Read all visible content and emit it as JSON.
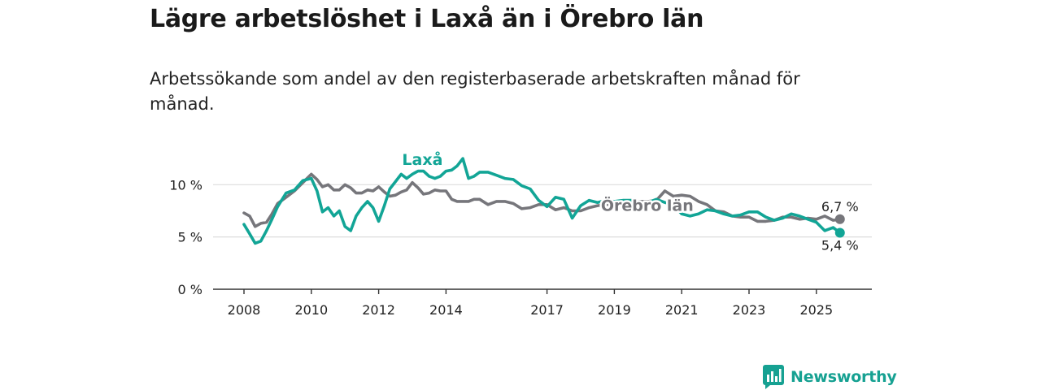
{
  "title": "Lägre arbetslöshet i Laxå än i Örebro län",
  "subtitle": "Arbetssökande som andel av den registerbaserade arbetskraften månad för månad.",
  "brand": {
    "name": "Newsworthy",
    "icon": "newsworthy-logo-icon"
  },
  "colors": {
    "laxa": "#12a596",
    "orebro": "#76767b",
    "grid": "#dddddd",
    "axis": "#333333"
  },
  "chart_data": {
    "type": "line",
    "title": "Lägre arbetslöshet i Laxå än i Örebro län",
    "xlabel": "",
    "ylabel": "",
    "ylim": [
      0,
      12.9
    ],
    "xlim": [
      2007.7,
      2026.5
    ],
    "grid": true,
    "y_ticks": [
      {
        "value": 0,
        "label": "0 %"
      },
      {
        "value": 5,
        "label": "5 %"
      },
      {
        "value": 10,
        "label": "10 %"
      }
    ],
    "x_ticks": [
      {
        "value": 2008,
        "label": "2008"
      },
      {
        "value": 2010,
        "label": "2010"
      },
      {
        "value": 2012,
        "label": "2012"
      },
      {
        "value": 2014,
        "label": "2014"
      },
      {
        "value": 2017,
        "label": "2017"
      },
      {
        "value": 2019,
        "label": "2019"
      },
      {
        "value": 2021,
        "label": "2021"
      },
      {
        "value": 2023,
        "label": "2023"
      },
      {
        "value": 2025,
        "label": "2025"
      }
    ],
    "series": [
      {
        "name": "Örebro län",
        "label": "Örebro län",
        "color": "#76767b",
        "end_label": "6,7 %",
        "x": [
          2008.0,
          2008.17,
          2008.33,
          2008.5,
          2008.67,
          2008.83,
          2009.0,
          2009.25,
          2009.5,
          2009.75,
          2010.0,
          2010.17,
          2010.33,
          2010.5,
          2010.67,
          2010.83,
          2011.0,
          2011.17,
          2011.33,
          2011.5,
          2011.67,
          2011.83,
          2012.0,
          2012.17,
          2012.33,
          2012.5,
          2012.67,
          2012.83,
          2013.0,
          2013.17,
          2013.33,
          2013.5,
          2013.67,
          2013.83,
          2014.0,
          2014.17,
          2014.33,
          2014.5,
          2014.67,
          2014.83,
          2015.0,
          2015.25,
          2015.5,
          2015.75,
          2016.0,
          2016.25,
          2016.5,
          2016.75,
          2017.0,
          2017.25,
          2017.5,
          2017.75,
          2018.0,
          2018.25,
          2018.5,
          2018.75,
          2019.0,
          2019.25,
          2019.5,
          2019.75,
          2020.0,
          2020.25,
          2020.5,
          2020.75,
          2021.0,
          2021.25,
          2021.5,
          2021.75,
          2022.0,
          2022.25,
          2022.5,
          2022.75,
          2023.0,
          2023.25,
          2023.5,
          2023.75,
          2024.0,
          2024.25,
          2024.5,
          2024.75,
          2025.0,
          2025.25,
          2025.5,
          2025.7
        ],
        "values": [
          7.3,
          7.0,
          6.0,
          6.3,
          6.4,
          7.2,
          8.2,
          8.8,
          9.4,
          10.2,
          11.0,
          10.5,
          9.8,
          10.0,
          9.5,
          9.5,
          10.0,
          9.7,
          9.2,
          9.2,
          9.5,
          9.4,
          9.8,
          9.3,
          8.9,
          9.0,
          9.3,
          9.5,
          10.2,
          9.7,
          9.1,
          9.2,
          9.5,
          9.4,
          9.4,
          8.6,
          8.4,
          8.4,
          8.4,
          8.6,
          8.6,
          8.1,
          8.4,
          8.4,
          8.2,
          7.7,
          7.8,
          8.1,
          8.1,
          7.6,
          7.8,
          7.5,
          7.5,
          7.8,
          8.0,
          8.1,
          8.2,
          8.3,
          8.3,
          8.4,
          8.4,
          8.5,
          9.4,
          8.9,
          9.0,
          8.9,
          8.4,
          8.1,
          7.5,
          7.4,
          7.0,
          6.9,
          6.9,
          6.5,
          6.5,
          6.6,
          6.9,
          6.9,
          6.7,
          6.8,
          6.7,
          7.0,
          6.6,
          6.7
        ],
        "label_at": {
          "x": 2018.6,
          "y": 7.5
        }
      },
      {
        "name": "Laxå",
        "label": "Laxå",
        "color": "#12a596",
        "end_label": "5,4 %",
        "x": [
          2008.0,
          2008.17,
          2008.33,
          2008.5,
          2008.67,
          2008.83,
          2009.0,
          2009.25,
          2009.5,
          2009.75,
          2010.0,
          2010.17,
          2010.33,
          2010.5,
          2010.67,
          2010.83,
          2011.0,
          2011.17,
          2011.33,
          2011.5,
          2011.67,
          2011.83,
          2012.0,
          2012.17,
          2012.33,
          2012.5,
          2012.67,
          2012.83,
          2013.0,
          2013.17,
          2013.33,
          2013.5,
          2013.67,
          2013.83,
          2014.0,
          2014.17,
          2014.33,
          2014.5,
          2014.67,
          2014.83,
          2015.0,
          2015.25,
          2015.5,
          2015.75,
          2016.0,
          2016.25,
          2016.5,
          2016.75,
          2017.0,
          2017.25,
          2017.5,
          2017.75,
          2018.0,
          2018.25,
          2018.5,
          2018.75,
          2019.0,
          2019.25,
          2019.5,
          2019.75,
          2020.0,
          2020.25,
          2020.5,
          2020.75,
          2021.0,
          2021.25,
          2021.5,
          2021.75,
          2022.0,
          2022.25,
          2022.5,
          2022.75,
          2023.0,
          2023.25,
          2023.5,
          2023.75,
          2024.0,
          2024.25,
          2024.5,
          2024.75,
          2025.0,
          2025.25,
          2025.5,
          2025.7
        ],
        "values": [
          6.2,
          5.3,
          4.4,
          4.6,
          5.6,
          6.7,
          7.9,
          9.2,
          9.5,
          10.4,
          10.6,
          9.4,
          7.4,
          7.8,
          7.0,
          7.5,
          6.0,
          5.6,
          7.0,
          7.8,
          8.4,
          7.8,
          6.5,
          8.0,
          9.6,
          10.3,
          11.0,
          10.6,
          11.0,
          11.3,
          11.3,
          10.8,
          10.6,
          10.8,
          11.3,
          11.4,
          11.8,
          12.5,
          10.6,
          10.8,
          11.2,
          11.2,
          10.9,
          10.6,
          10.5,
          9.9,
          9.6,
          8.5,
          7.9,
          8.8,
          8.6,
          6.8,
          8.0,
          8.5,
          8.3,
          8.5,
          8.4,
          8.5,
          8.5,
          8.0,
          8.3,
          8.6,
          8.3,
          8.1,
          7.2,
          7.0,
          7.2,
          7.6,
          7.5,
          7.2,
          7.0,
          7.1,
          7.4,
          7.4,
          6.9,
          6.6,
          6.8,
          7.2,
          7.0,
          6.7,
          6.4,
          5.6,
          5.9,
          5.4
        ],
        "label_at": {
          "x": 2013.3,
          "y": 11.9
        }
      }
    ]
  }
}
